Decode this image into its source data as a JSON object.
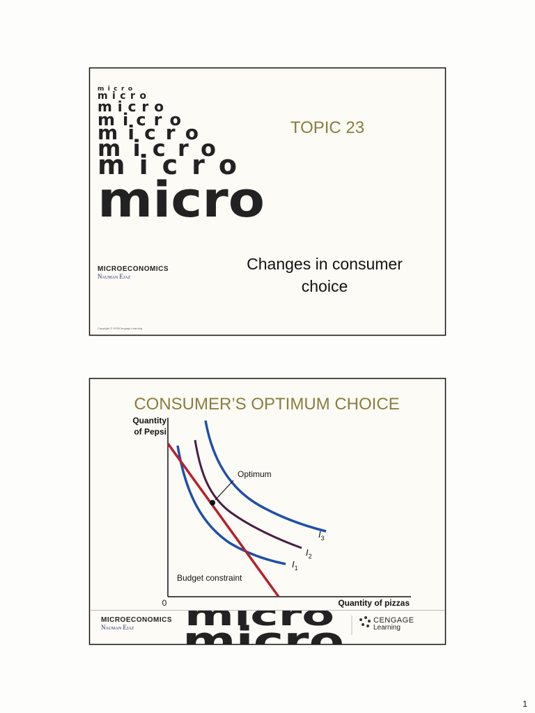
{
  "page_number": "1",
  "slides": [
    {
      "logo": "micro",
      "title": "TOPIC 23",
      "subtitle": [
        "Changes in consumer",
        "choice"
      ],
      "brand": "MICROECONOMICS",
      "author": "Nauman Ejaz",
      "copyright": "Copyright © 2020Cengage Learning"
    },
    {
      "title": "CONSUMER’S OPTIMUM CHOICE",
      "y_axis_label": [
        "Quantity",
        "of Pepsi"
      ],
      "x_axis_label": "Quantity of pizzas",
      "origin": "0",
      "optimum_label": "Optimum",
      "budget_label": "Budget constraint",
      "curves": [
        {
          "letter": "I",
          "sub": "3"
        },
        {
          "letter": "I",
          "sub": "2"
        },
        {
          "letter": "I",
          "sub": "1"
        }
      ],
      "brand": "MICROECONOMICS",
      "author": "Nauman Ejaz",
      "logo": "micro",
      "publisher": [
        "CENGAGE",
        "Learning"
      ]
    }
  ]
}
